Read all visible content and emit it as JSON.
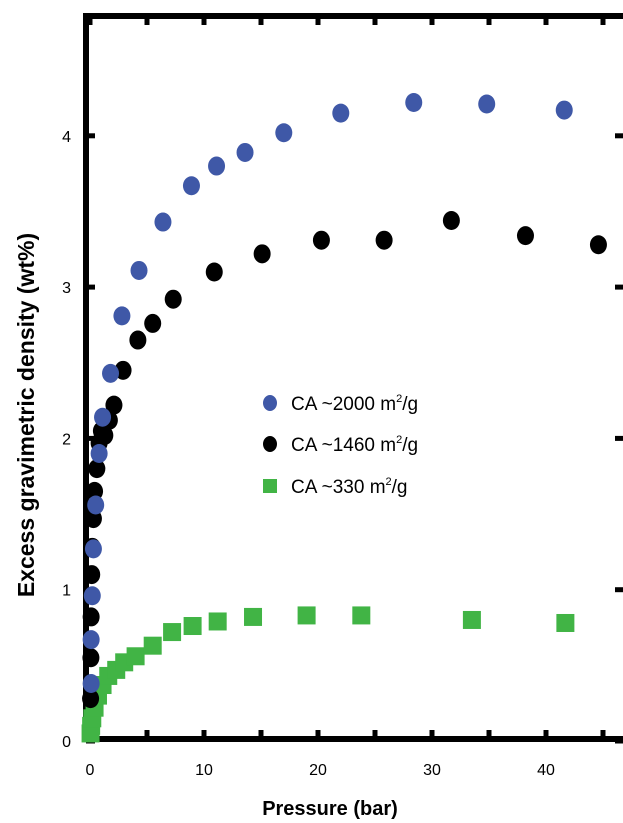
{
  "chart_data": {
    "type": "scatter",
    "title": "",
    "xlabel": "Pressure (bar)",
    "ylabel": "Excess gravimetric density (wt%)",
    "xlim": [
      -0.2,
      46
    ],
    "ylim": [
      0,
      4.9
    ],
    "xticks": [
      "0",
      "10",
      "20",
      "30",
      "40"
    ],
    "yticks": [
      "0",
      "1",
      "2",
      "3",
      "4"
    ],
    "legend_position": "center-right",
    "series": [
      {
        "name": "CA ~2000 m²/g",
        "legend_text": "CA ~2000 m",
        "legend_unit": "/g",
        "marker": "circle",
        "color": "#3f58a7",
        "x": [
          0.1,
          0.1,
          0.2,
          0.3,
          0.5,
          0.8,
          1.1,
          1.8,
          2.8,
          4.3,
          6.4,
          8.9,
          11.1,
          13.6,
          17.0,
          22.0,
          28.4,
          34.8,
          41.6
        ],
        "y": [
          0.38,
          0.67,
          0.96,
          1.27,
          1.56,
          1.9,
          2.14,
          2.43,
          2.81,
          3.11,
          3.43,
          3.67,
          3.8,
          3.89,
          4.02,
          4.15,
          4.22,
          4.21,
          4.17
        ]
      },
      {
        "name": "CA ~1460 m²/g",
        "legend_text": "CA ~1460 m",
        "legend_unit": "/g",
        "marker": "circle",
        "color": "#000000",
        "x": [
          0.05,
          0.08,
          0.1,
          0.15,
          0.2,
          0.3,
          0.4,
          0.6,
          0.8,
          1.0,
          1.3,
          1.7,
          2.1,
          2.9,
          4.2,
          5.5,
          7.3,
          10.9,
          15.1,
          20.3,
          25.8,
          31.7,
          38.2,
          44.6
        ],
        "y": [
          0.28,
          0.55,
          0.82,
          1.1,
          1.28,
          1.47,
          1.65,
          1.8,
          1.97,
          2.05,
          2.02,
          2.12,
          2.22,
          2.45,
          2.65,
          2.76,
          2.92,
          3.1,
          3.22,
          3.31,
          3.31,
          3.44,
          3.34,
          3.28
        ]
      },
      {
        "name": "CA ~330 m²/g",
        "legend_text": "CA ~330 m",
        "legend_unit": "/g",
        "marker": "square",
        "color": "#41b445",
        "x": [
          0.05,
          0.1,
          0.2,
          0.4,
          0.7,
          1.1,
          1.6,
          2.3,
          3.0,
          4.0,
          5.5,
          7.2,
          9.0,
          11.2,
          14.3,
          19.0,
          23.8,
          33.5,
          41.7
        ],
        "y": [
          0.05,
          0.1,
          0.15,
          0.22,
          0.3,
          0.37,
          0.43,
          0.47,
          0.52,
          0.56,
          0.63,
          0.72,
          0.76,
          0.79,
          0.82,
          0.83,
          0.83,
          0.8,
          0.78
        ]
      }
    ]
  }
}
